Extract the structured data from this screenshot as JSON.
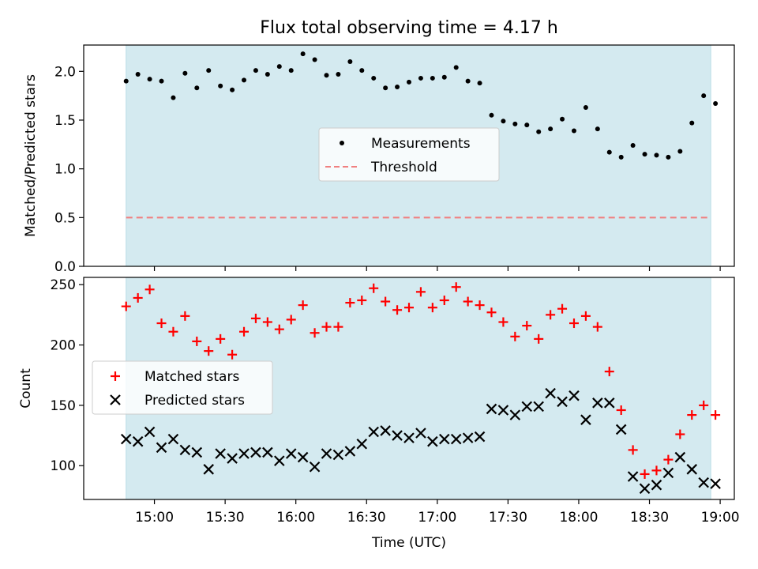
{
  "chart_data": [
    {
      "type": "scatter",
      "title": "Flux total observing time = 4.17 h",
      "ylabel": "Matched/Predicted stars",
      "xlabel": "",
      "ylim": [
        0,
        2.27
      ],
      "yticks": [
        "0.0",
        "0.5",
        "1.0",
        "1.5",
        "2.0"
      ],
      "ytick_values": [
        0,
        0.5,
        1.0,
        1.5,
        2.0
      ],
      "shaded_span": [
        "14:48",
        "18:56"
      ],
      "shade_color": "#d4eaf0",
      "legend": {
        "placement": "center",
        "entries": [
          "Measurements",
          "Threshold"
        ]
      },
      "series": [
        {
          "name": "Measurements",
          "marker": "dot",
          "color": "#000000",
          "x": [
            "14:48",
            "14:53",
            "14:58",
            "15:03",
            "15:08",
            "15:13",
            "15:18",
            "15:23",
            "15:28",
            "15:33",
            "15:38",
            "15:43",
            "15:48",
            "15:53",
            "15:58",
            "16:03",
            "16:08",
            "16:13",
            "16:18",
            "16:23",
            "16:28",
            "16:33",
            "16:38",
            "16:43",
            "16:48",
            "16:53",
            "16:58",
            "17:03",
            "17:08",
            "17:13",
            "17:18",
            "17:23",
            "17:28",
            "17:33",
            "17:38",
            "17:43",
            "17:48",
            "17:53",
            "17:58",
            "18:03",
            "18:08",
            "18:13",
            "18:18",
            "18:23",
            "18:28",
            "18:33",
            "18:38",
            "18:43",
            "18:48",
            "18:53",
            "18:58"
          ],
          "y": [
            1.9,
            1.97,
            1.92,
            1.9,
            1.73,
            1.98,
            1.83,
            2.01,
            1.85,
            1.81,
            1.91,
            2.01,
            1.97,
            2.05,
            2.01,
            2.18,
            2.12,
            1.96,
            1.97,
            2.1,
            2.01,
            1.93,
            1.83,
            1.84,
            1.89,
            1.93,
            1.93,
            1.94,
            2.04,
            1.9,
            1.88,
            1.55,
            1.49,
            1.46,
            1.45,
            1.38,
            1.41,
            1.51,
            1.39,
            1.63,
            1.41,
            1.17,
            1.12,
            1.24,
            1.15,
            1.14,
            1.12,
            1.18,
            1.47,
            1.75,
            1.67
          ]
        },
        {
          "name": "Threshold",
          "marker": "dashed-line",
          "color": "#f08080",
          "x": [
            "14:48",
            "18:56"
          ],
          "y": [
            0.5,
            0.5
          ]
        }
      ]
    },
    {
      "type": "scatter",
      "title": "",
      "ylabel": "Count",
      "xlabel": "Time (UTC)",
      "ylim": [
        72,
        256
      ],
      "yticks": [
        "100",
        "150",
        "200",
        "250"
      ],
      "ytick_values": [
        100,
        150,
        200,
        250
      ],
      "xticks": [
        "15:00",
        "15:30",
        "16:00",
        "16:30",
        "17:00",
        "17:30",
        "18:00",
        "18:30",
        "19:00"
      ],
      "shaded_span": [
        "14:48",
        "18:56"
      ],
      "shade_color": "#d4eaf0",
      "legend": {
        "placement": "center-left",
        "entries": [
          "Matched stars",
          "Predicted stars"
        ]
      },
      "series": [
        {
          "name": "Matched stars",
          "marker": "plus",
          "color": "#ff0000",
          "x": [
            "14:48",
            "14:53",
            "14:58",
            "15:03",
            "15:08",
            "15:13",
            "15:18",
            "15:23",
            "15:28",
            "15:33",
            "15:38",
            "15:43",
            "15:48",
            "15:53",
            "15:58",
            "16:03",
            "16:08",
            "16:13",
            "16:18",
            "16:23",
            "16:28",
            "16:33",
            "16:38",
            "16:43",
            "16:48",
            "16:53",
            "16:58",
            "17:03",
            "17:08",
            "17:13",
            "17:18",
            "17:23",
            "17:28",
            "17:33",
            "17:38",
            "17:43",
            "17:48",
            "17:53",
            "17:58",
            "18:03",
            "18:08",
            "18:13",
            "18:18",
            "18:23",
            "18:28",
            "18:33",
            "18:38",
            "18:43",
            "18:48",
            "18:53",
            "18:58"
          ],
          "y": [
            232,
            239,
            246,
            218,
            211,
            224,
            203,
            195,
            205,
            192,
            211,
            222,
            219,
            213,
            221,
            233,
            210,
            215,
            215,
            235,
            237,
            247,
            236,
            229,
            231,
            244,
            231,
            237,
            248,
            236,
            233,
            227,
            219,
            207,
            216,
            205,
            225,
            230,
            218,
            224,
            215,
            178,
            146,
            113,
            93,
            96,
            105,
            126,
            142,
            150,
            142
          ]
        },
        {
          "name": "Predicted stars",
          "marker": "x",
          "color": "#000000",
          "x": [
            "14:48",
            "14:53",
            "14:58",
            "15:03",
            "15:08",
            "15:13",
            "15:18",
            "15:23",
            "15:28",
            "15:33",
            "15:38",
            "15:43",
            "15:48",
            "15:53",
            "15:58",
            "16:03",
            "16:08",
            "16:13",
            "16:18",
            "16:23",
            "16:28",
            "16:33",
            "16:38",
            "16:43",
            "16:48",
            "16:53",
            "16:58",
            "17:03",
            "17:08",
            "17:13",
            "17:18",
            "17:23",
            "17:28",
            "17:33",
            "17:38",
            "17:43",
            "17:48",
            "17:53",
            "17:58",
            "18:03",
            "18:08",
            "18:13",
            "18:18",
            "18:23",
            "18:28",
            "18:33",
            "18:38",
            "18:43",
            "18:48",
            "18:53",
            "18:58"
          ],
          "y": [
            122,
            120,
            128,
            115,
            122,
            113,
            111,
            97,
            110,
            106,
            110,
            111,
            111,
            104,
            110,
            107,
            99,
            110,
            109,
            112,
            118,
            128,
            129,
            125,
            123,
            127,
            120,
            122,
            122,
            123,
            124,
            147,
            146,
            142,
            149,
            149,
            160,
            153,
            158,
            138,
            152,
            152,
            130,
            91,
            81,
            84,
            94,
            107,
            97,
            86,
            85
          ]
        }
      ]
    }
  ]
}
